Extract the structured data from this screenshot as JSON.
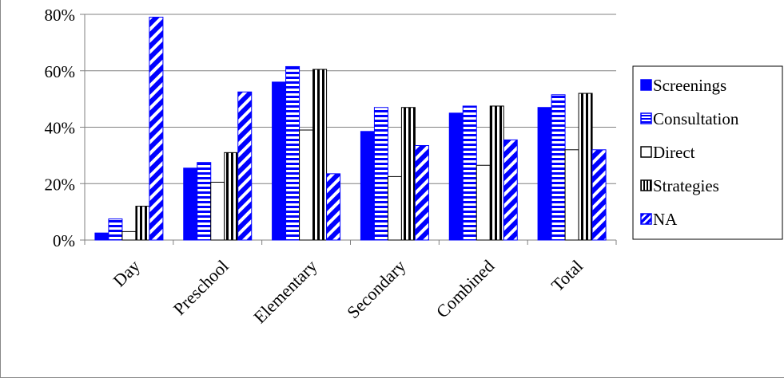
{
  "chart_data": {
    "type": "bar",
    "categories": [
      "Day",
      "Preschool",
      "Elementary",
      "Secondary",
      "Combined",
      "Total"
    ],
    "series": [
      {
        "name": "Screenings",
        "values": [
          2.5,
          25.5,
          56,
          38.5,
          45,
          47
        ],
        "color": "#0000FF",
        "pattern": "solid"
      },
      {
        "name": "Consultation",
        "values": [
          7.5,
          27.5,
          61.5,
          47,
          47.5,
          51.5
        ],
        "color": "#0000FF",
        "pattern": "horizontal-stripes"
      },
      {
        "name": "Direct",
        "values": [
          3,
          20.5,
          39,
          22.5,
          26.5,
          32
        ],
        "color": "#000000",
        "pattern": "none"
      },
      {
        "name": "Strategies",
        "values": [
          12,
          31,
          60.5,
          47,
          47.5,
          52
        ],
        "color": "#000000",
        "pattern": "vertical-stripes"
      },
      {
        "name": "NA",
        "values": [
          79,
          52.5,
          23.5,
          33.5,
          35.5,
          32
        ],
        "color": "#0000FF",
        "pattern": "diagonal-stripes"
      }
    ],
    "yticks": [
      "0%",
      "20%",
      "40%",
      "60%",
      "80%"
    ],
    "ylim": [
      0,
      80
    ],
    "grid": true,
    "legend_position": "right"
  }
}
